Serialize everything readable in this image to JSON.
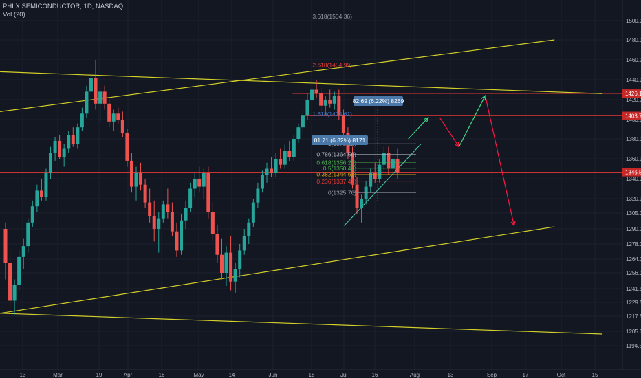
{
  "header": {
    "symbol_line": "PHLX SEMICONDUCTOR, 1D, NASDAQ",
    "indicator_line": "Vol (20)"
  },
  "colors": {
    "background": "#131722",
    "bull": "#26a69a",
    "bear": "#ef5350",
    "trendline": "#d4d02a",
    "level_line": "#e53935",
    "arrow_green": "#3ddc84",
    "arrow_red": "#ff1744",
    "box": "#4a78a8"
  },
  "chart_data": {
    "type": "candlestick",
    "title": "PHLX SEMICONDUCTOR, 1D, NASDAQ",
    "ylim": [
      1190,
      1530
    ],
    "y_ticks": [
      "1500.00",
      "1480.00",
      "1460.00",
      "1440.00",
      "1420.00",
      "1400.00",
      "1380.00",
      "1360.00",
      "1340.00",
      "1320.00",
      "1305.00",
      "1290.00",
      "1278.00",
      "1264.00",
      "1256.00",
      "1241.50",
      "1229.50",
      "1217.50",
      "1205.00",
      "1194.50"
    ],
    "x_ticks": [
      "13",
      "Mar",
      "19",
      "Apr",
      "16",
      "May",
      "14",
      "Jun",
      "18",
      "Jul",
      "16",
      "Aug",
      "13",
      "Sep",
      "17",
      "Oct",
      "15"
    ],
    "price_tags": [
      {
        "label": "1426.15",
        "value": 1426.15,
        "style": "red"
      },
      {
        "label": "1403.77",
        "value": 1403.77,
        "style": "red"
      },
      {
        "label": "1346.50",
        "value": 1346.5,
        "style": "red"
      }
    ],
    "horizontal_levels": [
      {
        "value": 1426.15,
        "from": 0.47,
        "to": 0.95
      },
      {
        "value": 1403.77,
        "from": 0.49,
        "to": 0.95
      },
      {
        "value": 1346.5,
        "from": 0.0,
        "to": 0.95
      }
    ],
    "fib_levels": [
      {
        "label": "3.618(1504.36)",
        "value": 1504.36,
        "color": "#9598a1"
      },
      {
        "label": "2.618(1454.99)",
        "value": 1454.99,
        "color": "#e53935"
      },
      {
        "label": "1.618(1405.61)",
        "value": 1405.61,
        "color": "#3f6fb5"
      },
      {
        "label": "1(1375.12)",
        "value": 1375.12,
        "color": "#9598a1"
      },
      {
        "label": "0.786(1364.56)",
        "value": 1364.56,
        "color": "#b2b5be"
      },
      {
        "label": "0.618(1356.26)",
        "value": 1356.26,
        "color": "#4caf50"
      },
      {
        "label": "0.5(1350.44)",
        "value": 1350.44,
        "color": "#4caf50"
      },
      {
        "label": "0.382(1344.61)",
        "value": 1344.61,
        "color": "#d4a017"
      },
      {
        "label": "0.236(1337.41)",
        "value": 1337.41,
        "color": "#e53935"
      },
      {
        "label": "0(1325.76)",
        "value": 1325.76,
        "color": "#9598a1"
      }
    ],
    "measure_boxes": [
      {
        "label": "82.69 (6.22%) 8269"
      },
      {
        "label": "81.71 (6.32%) 8171"
      }
    ],
    "candles": [
      [
        1290,
        1296,
        1250,
        1262
      ],
      [
        1262,
        1272,
        1221,
        1231
      ],
      [
        1231,
        1250,
        1219,
        1245
      ],
      [
        1245,
        1272,
        1240,
        1266
      ],
      [
        1266,
        1282,
        1258,
        1276
      ],
      [
        1276,
        1300,
        1270,
        1296
      ],
      [
        1296,
        1318,
        1292,
        1312
      ],
      [
        1312,
        1334,
        1306,
        1328
      ],
      [
        1328,
        1340,
        1318,
        1322
      ],
      [
        1322,
        1350,
        1318,
        1346
      ],
      [
        1346,
        1372,
        1340,
        1366
      ],
      [
        1366,
        1382,
        1358,
        1378
      ],
      [
        1378,
        1384,
        1360,
        1362
      ],
      [
        1362,
        1375,
        1352,
        1370
      ],
      [
        1370,
        1388,
        1366,
        1384
      ],
      [
        1384,
        1392,
        1372,
        1375
      ],
      [
        1375,
        1396,
        1370,
        1392
      ],
      [
        1392,
        1412,
        1388,
        1406
      ],
      [
        1406,
        1434,
        1402,
        1428
      ],
      [
        1428,
        1448,
        1420,
        1442
      ],
      [
        1442,
        1460,
        1410,
        1416
      ],
      [
        1416,
        1432,
        1398,
        1428
      ],
      [
        1428,
        1434,
        1410,
        1416
      ],
      [
        1416,
        1420,
        1392,
        1398
      ],
      [
        1398,
        1410,
        1388,
        1406
      ],
      [
        1406,
        1412,
        1396,
        1400
      ],
      [
        1400,
        1408,
        1382,
        1386
      ],
      [
        1386,
        1390,
        1352,
        1358
      ],
      [
        1358,
        1366,
        1326,
        1332
      ],
      [
        1332,
        1352,
        1318,
        1346
      ],
      [
        1346,
        1356,
        1328,
        1334
      ],
      [
        1334,
        1340,
        1310,
        1316
      ],
      [
        1316,
        1330,
        1296,
        1302
      ],
      [
        1302,
        1318,
        1280,
        1290
      ],
      [
        1290,
        1306,
        1270,
        1300
      ],
      [
        1300,
        1318,
        1296,
        1314
      ],
      [
        1314,
        1330,
        1300,
        1306
      ],
      [
        1306,
        1316,
        1284,
        1288
      ],
      [
        1288,
        1296,
        1266,
        1272
      ],
      [
        1272,
        1304,
        1268,
        1298
      ],
      [
        1298,
        1318,
        1290,
        1310
      ],
      [
        1310,
        1336,
        1306,
        1330
      ],
      [
        1330,
        1346,
        1322,
        1340
      ],
      [
        1340,
        1352,
        1326,
        1332
      ],
      [
        1332,
        1350,
        1320,
        1346
      ],
      [
        1346,
        1352,
        1300,
        1306
      ],
      [
        1306,
        1316,
        1280,
        1286
      ],
      [
        1286,
        1294,
        1262,
        1268
      ],
      [
        1268,
        1282,
        1250,
        1256
      ],
      [
        1256,
        1276,
        1244,
        1270
      ],
      [
        1270,
        1284,
        1240,
        1248
      ],
      [
        1248,
        1262,
        1238,
        1258
      ],
      [
        1258,
        1278,
        1252,
        1272
      ],
      [
        1272,
        1290,
        1268,
        1284
      ],
      [
        1284,
        1300,
        1278,
        1296
      ],
      [
        1296,
        1320,
        1292,
        1316
      ],
      [
        1316,
        1336,
        1310,
        1330
      ],
      [
        1330,
        1348,
        1326,
        1344
      ],
      [
        1344,
        1356,
        1336,
        1350
      ],
      [
        1350,
        1362,
        1342,
        1346
      ],
      [
        1346,
        1366,
        1342,
        1360
      ],
      [
        1360,
        1370,
        1350,
        1354
      ],
      [
        1354,
        1374,
        1350,
        1368
      ],
      [
        1368,
        1378,
        1358,
        1362
      ],
      [
        1362,
        1384,
        1358,
        1380
      ],
      [
        1380,
        1396,
        1376,
        1392
      ],
      [
        1392,
        1410,
        1386,
        1404
      ],
      [
        1404,
        1426,
        1400,
        1420
      ],
      [
        1420,
        1436,
        1414,
        1430
      ],
      [
        1430,
        1440,
        1422,
        1426
      ],
      [
        1426,
        1432,
        1408,
        1414
      ],
      [
        1414,
        1424,
        1404,
        1420
      ],
      [
        1420,
        1430,
        1412,
        1416
      ],
      [
        1416,
        1428,
        1410,
        1424
      ],
      [
        1424,
        1430,
        1400,
        1404
      ],
      [
        1404,
        1410,
        1380,
        1386
      ],
      [
        1386,
        1392,
        1360,
        1366
      ],
      [
        1366,
        1372,
        1330,
        1334
      ],
      [
        1334,
        1342,
        1304,
        1310
      ],
      [
        1310,
        1324,
        1296,
        1320
      ],
      [
        1320,
        1338,
        1314,
        1332
      ],
      [
        1332,
        1350,
        1326,
        1346
      ],
      [
        1346,
        1356,
        1336,
        1340
      ],
      [
        1340,
        1360,
        1336,
        1354
      ],
      [
        1354,
        1372,
        1348,
        1366
      ],
      [
        1366,
        1372,
        1344,
        1350
      ],
      [
        1350,
        1364,
        1344,
        1360
      ],
      [
        1360,
        1370,
        1340,
        1346
      ]
    ],
    "annotations": [
      {
        "type": "trendline",
        "points": [
          [
            0.0,
            1448
          ],
          [
            0.94,
            1426
          ]
        ]
      },
      {
        "type": "trendline",
        "points": [
          [
            0.0,
            1408
          ],
          [
            0.865,
            1480
          ]
        ]
      },
      {
        "type": "trendline",
        "points": [
          [
            0.0,
            1220
          ],
          [
            0.865,
            1292
          ]
        ]
      },
      {
        "type": "trendline",
        "points": [
          [
            0.0,
            1220
          ],
          [
            0.94,
            1203
          ]
        ]
      },
      {
        "type": "arrow",
        "color": "green",
        "points": [
          [
            0.637,
            1380
          ],
          [
            0.668,
            1402
          ]
        ]
      },
      {
        "type": "arrow",
        "color": "red",
        "points": [
          [
            0.686,
            1402
          ],
          [
            0.716,
            1372
          ]
        ]
      },
      {
        "type": "arrow",
        "color": "green",
        "points": [
          [
            0.716,
            1372
          ],
          [
            0.757,
            1424
          ]
        ]
      },
      {
        "type": "arrow",
        "color": "red",
        "points": [
          [
            0.757,
            1424
          ],
          [
            0.802,
            1293
          ]
        ]
      },
      {
        "type": "trendline_small",
        "points": [
          [
            0.537,
            1293
          ],
          [
            0.657,
            1375
          ]
        ]
      }
    ]
  }
}
